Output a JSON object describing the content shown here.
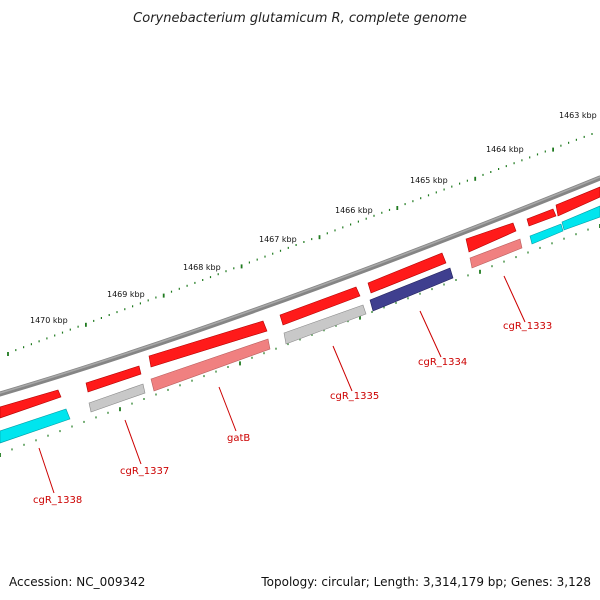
{
  "title": "Corynebacterium glutamicum R, complete genome",
  "accession": "Accession: NC_009342",
  "topology": "Topology: circular; Length: 3,314,179 bp; Genes: 3,128",
  "colors": {
    "backbone": "#808080",
    "forward_gene": "#ff0000",
    "reverse_gene": "#f08080",
    "rna_gene": "#00e5ee",
    "neutral_gene": "#c0c0c0",
    "highlight_gene": "#3f3f8f",
    "tick": "#1f7a1f",
    "label": "#cc0000"
  },
  "kbp_ticks": [
    {
      "label": "1463 kbp"
    },
    {
      "label": "1464 kbp"
    },
    {
      "label": "1465 kbp"
    },
    {
      "label": "1466 kbp"
    },
    {
      "label": "1467 kbp"
    },
    {
      "label": "1468 kbp"
    },
    {
      "label": "1469 kbp"
    },
    {
      "label": "1470 kbp"
    }
  ],
  "gene_labels": [
    {
      "name": "cgR_1333"
    },
    {
      "name": "cgR_1334"
    },
    {
      "name": "cgR_1335"
    },
    {
      "name": "gatB"
    },
    {
      "name": "cgR_1337"
    },
    {
      "name": "cgR_1338"
    }
  ]
}
